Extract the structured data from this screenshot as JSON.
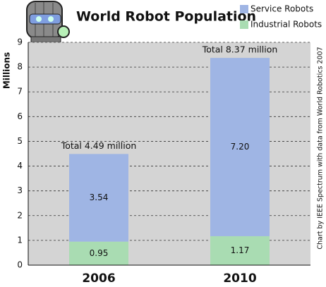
{
  "chart_data": {
    "type": "stacked_bar",
    "title": "World Robot Population",
    "y_label": "Millions",
    "source": "Chart by IEEE Spectrum with data from World Robotics 2007",
    "categories": [
      "2006",
      "2010"
    ],
    "series": [
      {
        "name": "Industrial Robots",
        "color": "#a9dcb2",
        "values": [
          0.95,
          1.17
        ],
        "value_labels": [
          "0.95",
          "1.17"
        ]
      },
      {
        "name": "Service Robots",
        "color": "#9fb5e4",
        "values": [
          3.54,
          7.2
        ],
        "value_labels": [
          "3.54",
          "7.20"
        ]
      }
    ],
    "annotations": [
      "Total 4.49 million",
      "Total 8.37 million"
    ],
    "ylim": [
      0,
      9
    ],
    "yticks": [
      0,
      1,
      2,
      3,
      4,
      5,
      6,
      7,
      8,
      9
    ],
    "grid": true
  }
}
